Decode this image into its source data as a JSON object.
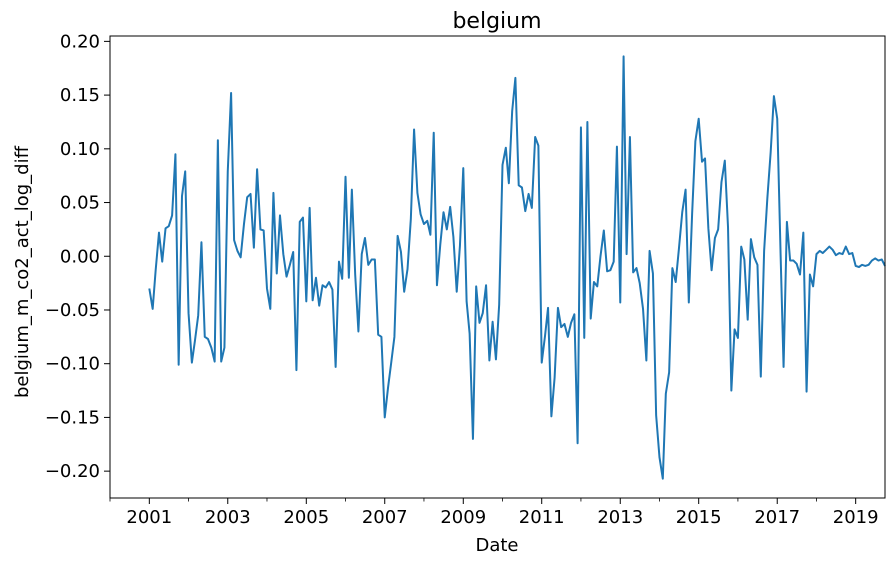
{
  "chart_data": {
    "type": "line",
    "title": "belgium",
    "xlabel": "Date",
    "ylabel": "belgium_m_co2_act_log_diff",
    "xlim": [
      "2000-01-01",
      "2019-10-01"
    ],
    "ylim": [
      -0.225,
      0.205
    ],
    "x_tick_labels": [
      "2001",
      "2003",
      "2005",
      "2007",
      "2009",
      "2011",
      "2013",
      "2015",
      "2017",
      "2019"
    ],
    "y_tick_labels": [
      "−0.20",
      "−0.15",
      "−0.10",
      "−0.05",
      "0.00",
      "0.05",
      "0.10",
      "0.15",
      "0.20"
    ],
    "y_ticks": [
      -0.2,
      -0.15,
      -0.1,
      -0.05,
      0.0,
      0.05,
      0.1,
      0.15,
      0.2
    ],
    "grid": false,
    "color": "#1f77b4",
    "series": [
      {
        "x": [
          "2001-01",
          "2001-02",
          "2001-03",
          "2001-04",
          "2001-05",
          "2001-06",
          "2001-07",
          "2001-08",
          "2001-09",
          "2001-10",
          "2001-11",
          "2001-12",
          "2002-01",
          "2002-02",
          "2002-03",
          "2002-04",
          "2002-05",
          "2002-06",
          "2002-07",
          "2002-08",
          "2002-09",
          "2002-10",
          "2002-11",
          "2002-12",
          "2003-01",
          "2003-02",
          "2003-03",
          "2003-04",
          "2003-05",
          "2003-06",
          "2003-07",
          "2003-08",
          "2003-09",
          "2003-10",
          "2003-11",
          "2003-12",
          "2004-01",
          "2004-02",
          "2004-03",
          "2004-04",
          "2004-05",
          "2004-06",
          "2004-07",
          "2004-08",
          "2004-09",
          "2004-10",
          "2004-11",
          "2004-12",
          "2005-01",
          "2005-02",
          "2005-03",
          "2005-04",
          "2005-05",
          "2005-06",
          "2005-07",
          "2005-08",
          "2005-09",
          "2005-10",
          "2005-11",
          "2005-12",
          "2006-01",
          "2006-02",
          "2006-03",
          "2006-04",
          "2006-05",
          "2006-06",
          "2006-07",
          "2006-08",
          "2006-09",
          "2006-10",
          "2006-11",
          "2006-12",
          "2007-01",
          "2007-02",
          "2007-03",
          "2007-04",
          "2007-05",
          "2007-06",
          "2007-07",
          "2007-08",
          "2007-09",
          "2007-10",
          "2007-11",
          "2007-12",
          "2008-01",
          "2008-02",
          "2008-03",
          "2008-04",
          "2008-05",
          "2008-06",
          "2008-07",
          "2008-08",
          "2008-09",
          "2008-10",
          "2008-11",
          "2008-12",
          "2009-01",
          "2009-02",
          "2009-03",
          "2009-04",
          "2009-05",
          "2009-06",
          "2009-07",
          "2009-08",
          "2009-09",
          "2009-10",
          "2009-11",
          "2009-12",
          "2010-01",
          "2010-02",
          "2010-03",
          "2010-04",
          "2010-05",
          "2010-06",
          "2010-07",
          "2010-08",
          "2010-09",
          "2010-10",
          "2010-11",
          "2010-12",
          "2011-01",
          "2011-02",
          "2011-03",
          "2011-04",
          "2011-05",
          "2011-06",
          "2011-07",
          "2011-08",
          "2011-09",
          "2011-10",
          "2011-11",
          "2011-12",
          "2012-01",
          "2012-02",
          "2012-03",
          "2012-04",
          "2012-05",
          "2012-06",
          "2012-07",
          "2012-08",
          "2012-09",
          "2012-10",
          "2012-11",
          "2012-12",
          "2013-01",
          "2013-02",
          "2013-03",
          "2013-04",
          "2013-05",
          "2013-06",
          "2013-07",
          "2013-08",
          "2013-09",
          "2013-10",
          "2013-11",
          "2013-12",
          "2014-01",
          "2014-02",
          "2014-03",
          "2014-04",
          "2014-05",
          "2014-06",
          "2014-07",
          "2014-08",
          "2014-09",
          "2014-10",
          "2014-11",
          "2014-12",
          "2015-01",
          "2015-02",
          "2015-03",
          "2015-04",
          "2015-05",
          "2015-06",
          "2015-07",
          "2015-08",
          "2015-09",
          "2015-10",
          "2015-11",
          "2015-12",
          "2016-01",
          "2016-02",
          "2016-03",
          "2016-04",
          "2016-05",
          "2016-06",
          "2016-07",
          "2016-08",
          "2016-09",
          "2016-10",
          "2016-11",
          "2016-12",
          "2017-01",
          "2017-02",
          "2017-03",
          "2017-04",
          "2017-05",
          "2017-06",
          "2017-07",
          "2017-08",
          "2017-09",
          "2017-10",
          "2017-11",
          "2017-12",
          "2018-01",
          "2018-02",
          "2018-03",
          "2018-04",
          "2018-05",
          "2018-06",
          "2018-07",
          "2018-08",
          "2018-09",
          "2018-10",
          "2018-11",
          "2018-12",
          "2019-01",
          "2019-02",
          "2019-03",
          "2019-04",
          "2019-05",
          "2019-06",
          "2019-07",
          "2019-08",
          "2019-09",
          "2019-10"
        ],
        "y": [
          -0.03,
          -0.049,
          -0.013,
          0.022,
          -0.005,
          0.026,
          0.028,
          0.038,
          0.095,
          -0.101,
          0.056,
          0.079,
          -0.053,
          -0.099,
          -0.079,
          -0.055,
          0.013,
          -0.075,
          -0.077,
          -0.085,
          -0.098,
          0.108,
          -0.098,
          -0.085,
          0.079,
          0.152,
          0.015,
          0.005,
          -0.001,
          0.03,
          0.055,
          0.058,
          0.008,
          0.081,
          0.025,
          0.024,
          -0.03,
          -0.049,
          0.059,
          -0.016,
          0.038,
          0.002,
          -0.019,
          -0.008,
          0.004,
          -0.106,
          0.032,
          0.036,
          -0.042,
          0.045,
          -0.041,
          -0.02,
          -0.046,
          -0.027,
          -0.029,
          -0.024,
          -0.031,
          -0.103,
          -0.005,
          -0.021,
          0.074,
          -0.02,
          0.062,
          -0.017,
          -0.07,
          0.002,
          0.017,
          -0.008,
          -0.003,
          -0.003,
          -0.073,
          -0.075,
          -0.15,
          -0.122,
          -0.1,
          -0.075,
          0.019,
          0.004,
          -0.033,
          -0.012,
          0.035,
          0.118,
          0.059,
          0.039,
          0.03,
          0.033,
          0.02,
          0.115,
          -0.027,
          0.011,
          0.041,
          0.025,
          0.046,
          0.018,
          -0.033,
          0.01,
          0.082,
          -0.042,
          -0.072,
          -0.17,
          -0.028,
          -0.062,
          -0.053,
          -0.027,
          -0.097,
          -0.061,
          -0.096,
          -0.045,
          0.085,
          0.101,
          0.068,
          0.135,
          0.166,
          0.066,
          0.064,
          0.042,
          0.058,
          0.045,
          0.111,
          0.103,
          -0.099,
          -0.074,
          -0.048,
          -0.149,
          -0.113,
          -0.048,
          -0.066,
          -0.063,
          -0.075,
          -0.062,
          -0.054,
          -0.174,
          0.12,
          -0.076,
          0.125,
          -0.058,
          -0.024,
          -0.028,
          0.0,
          0.024,
          -0.014,
          -0.013,
          -0.005,
          0.102,
          -0.043,
          0.186,
          0.002,
          0.111,
          -0.015,
          -0.011,
          -0.025,
          -0.049,
          -0.097,
          0.005,
          -0.016,
          -0.148,
          -0.187,
          -0.207,
          -0.128,
          -0.108,
          -0.011,
          -0.024,
          0.007,
          0.041,
          0.062,
          -0.043,
          0.04,
          0.107,
          0.128,
          0.088,
          0.091,
          0.026,
          -0.013,
          0.017,
          0.025,
          0.069,
          0.089,
          0.027,
          -0.125,
          -0.068,
          -0.076,
          0.009,
          -0.003,
          -0.059,
          0.016,
          -0.001,
          -0.008,
          -0.112,
          0.005,
          0.054,
          0.097,
          0.149,
          0.128,
          0.003,
          -0.103,
          0.032,
          -0.004,
          -0.004,
          -0.007,
          -0.017,
          0.022,
          -0.126,
          -0.017,
          -0.028,
          0.002,
          0.005,
          0.003,
          0.006,
          0.009,
          0.006,
          0.001,
          0.003,
          0.002,
          0.009,
          0.002,
          0.003,
          -0.009,
          -0.01,
          -0.008,
          -0.009,
          -0.008,
          -0.004,
          -0.002,
          -0.004,
          -0.003,
          -0.009
        ]
      }
    ]
  }
}
